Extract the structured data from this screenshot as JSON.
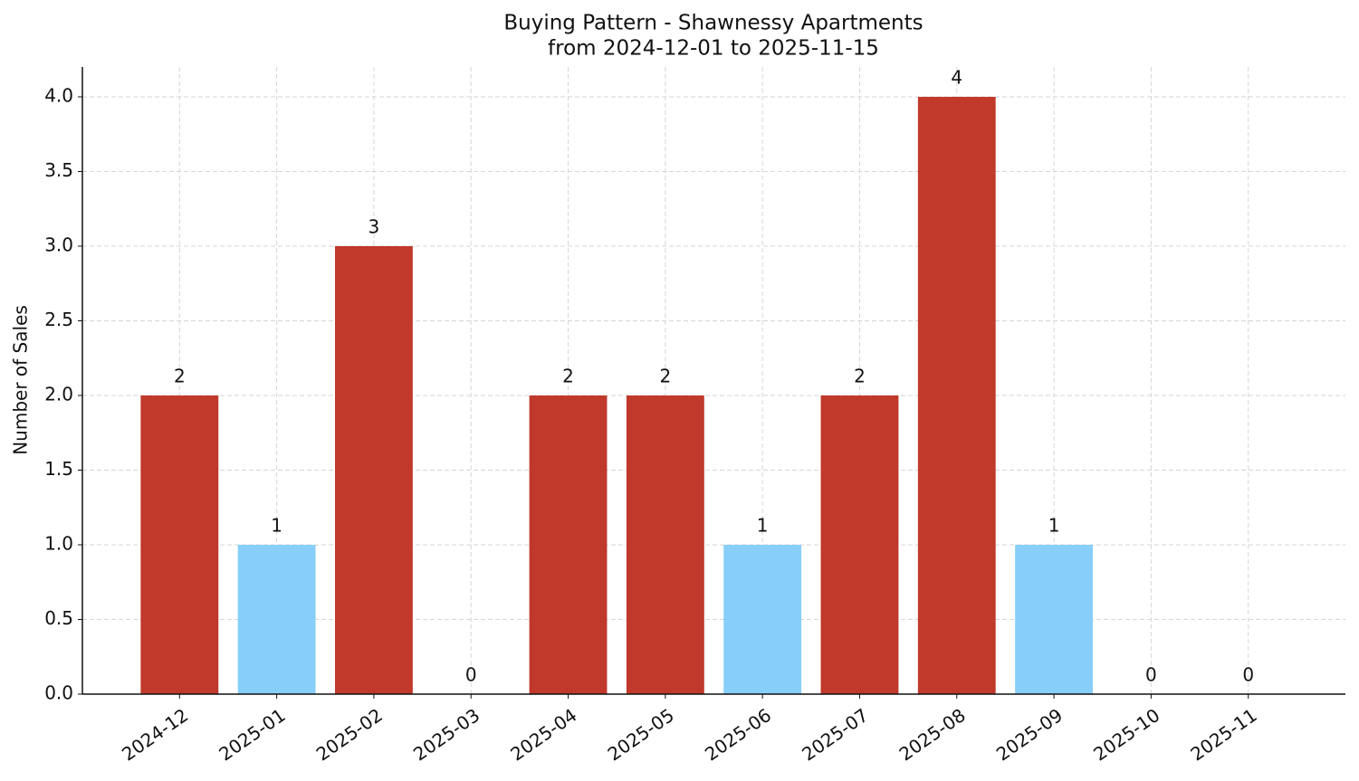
{
  "chart_data": {
    "type": "bar",
    "title": "Buying Pattern - Shawnessy Apartments",
    "subtitle": "from 2024-12-01 to 2025-11-15",
    "y_label": "Number of Sales",
    "categories": [
      "2024-12",
      "2025-01",
      "2025-02",
      "2025-03",
      "2025-04",
      "2025-05",
      "2025-06",
      "2025-07",
      "2025-08",
      "2025-09",
      "2025-10",
      "2025-11"
    ],
    "values": [
      2,
      1,
      3,
      0,
      2,
      2,
      1,
      2,
      4,
      1,
      0,
      0
    ],
    "colors": [
      "#c0392b",
      "#87cefa",
      "#c0392b",
      "#c0392b",
      "#c0392b",
      "#c0392b",
      "#87cefa",
      "#c0392b",
      "#c0392b",
      "#87cefa",
      "#c0392b",
      "#c0392b"
    ],
    "ylim": [
      0,
      4.2
    ],
    "yticks": [
      {
        "value": 0,
        "label": "0.0"
      },
      {
        "value": 0.5,
        "label": "0.5"
      },
      {
        "value": 1,
        "label": "1.0"
      },
      {
        "value": 1.5,
        "label": "1.5"
      },
      {
        "value": 2,
        "label": "2.0"
      },
      {
        "value": 2.5,
        "label": "2.5"
      },
      {
        "value": 3,
        "label": "3.0"
      },
      {
        "value": 3.5,
        "label": "3.5"
      },
      {
        "value": 4,
        "label": "4.0"
      }
    ],
    "grid": true
  }
}
